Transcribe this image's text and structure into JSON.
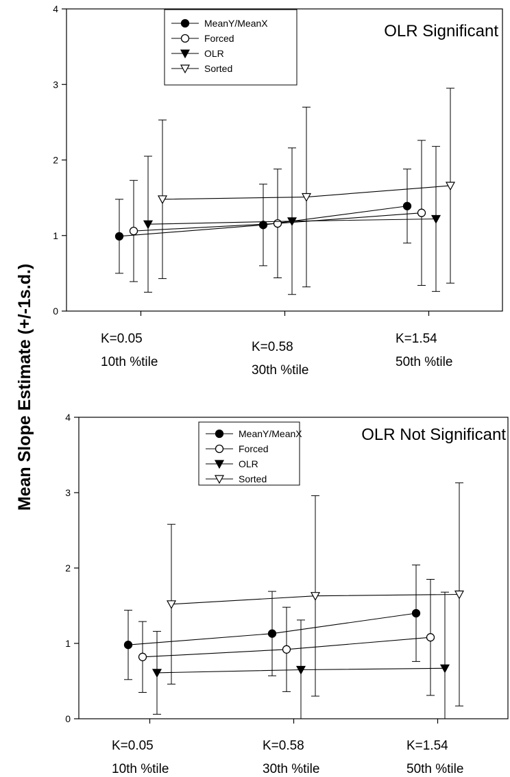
{
  "ylabel": "Mean Slope Estimate (+/-1s.d.)",
  "chart_data": [
    {
      "type": "scatter",
      "title": "OLR Significant",
      "ylim": [
        0,
        4
      ],
      "yticks": [
        0,
        1,
        2,
        3,
        4
      ],
      "legend_position": "top-center",
      "groups": [
        {
          "line1": "K=0.05",
          "line2": "10th %tile"
        },
        {
          "line1": "K=0.58",
          "line2": "30th %tile"
        },
        {
          "line1": "K=1.54",
          "line2": "50th %tile"
        }
      ],
      "series": [
        {
          "name": "MeanY/MeanX",
          "marker": "filled-circle",
          "values": [
            0.99,
            1.14,
            1.39
          ],
          "lower": [
            0.5,
            0.6,
            0.9
          ],
          "upper": [
            1.48,
            1.68,
            1.88
          ]
        },
        {
          "name": "Forced",
          "marker": "open-circle",
          "values": [
            1.06,
            1.16,
            1.3
          ],
          "lower": [
            0.39,
            0.44,
            0.34
          ],
          "upper": [
            1.73,
            1.88,
            2.26
          ]
        },
        {
          "name": "OLR",
          "marker": "filled-triangle-down",
          "values": [
            1.15,
            1.19,
            1.22
          ],
          "lower": [
            0.25,
            0.22,
            0.26
          ],
          "upper": [
            2.05,
            2.16,
            2.18
          ]
        },
        {
          "name": "Sorted",
          "marker": "open-triangle-down",
          "values": [
            1.48,
            1.51,
            1.66
          ],
          "lower": [
            0.43,
            0.32,
            0.37
          ],
          "upper": [
            2.53,
            2.7,
            2.95
          ]
        }
      ]
    },
    {
      "type": "scatter",
      "title": "OLR Not Significant",
      "ylim": [
        0,
        4
      ],
      "yticks": [
        0,
        1,
        2,
        3,
        4
      ],
      "legend_position": "top-center",
      "groups": [
        {
          "line1": "K=0.05",
          "line2": "10th %tile"
        },
        {
          "line1": "K=0.58",
          "line2": "30th %tile"
        },
        {
          "line1": "K=1.54",
          "line2": "50th %tile"
        }
      ],
      "series": [
        {
          "name": "MeanY/MeanX",
          "marker": "filled-circle",
          "values": [
            0.98,
            1.13,
            1.4
          ],
          "lower": [
            0.52,
            0.57,
            0.76
          ],
          "upper": [
            1.44,
            1.69,
            2.04
          ]
        },
        {
          "name": "Forced",
          "marker": "open-circle",
          "values": [
            0.82,
            0.92,
            1.08
          ],
          "lower": [
            0.35,
            0.36,
            0.31
          ],
          "upper": [
            1.29,
            1.48,
            1.85
          ]
        },
        {
          "name": "OLR",
          "marker": "filled-triangle-down",
          "values": [
            0.61,
            0.65,
            0.67
          ],
          "lower": [
            0.06,
            0.0,
            0.0
          ],
          "upper": [
            1.16,
            1.31,
            1.68
          ]
        },
        {
          "name": "Sorted",
          "marker": "open-triangle-down",
          "values": [
            1.52,
            1.63,
            1.65
          ],
          "lower": [
            0.46,
            0.3,
            0.17
          ],
          "upper": [
            2.58,
            2.96,
            3.13
          ]
        }
      ]
    }
  ]
}
